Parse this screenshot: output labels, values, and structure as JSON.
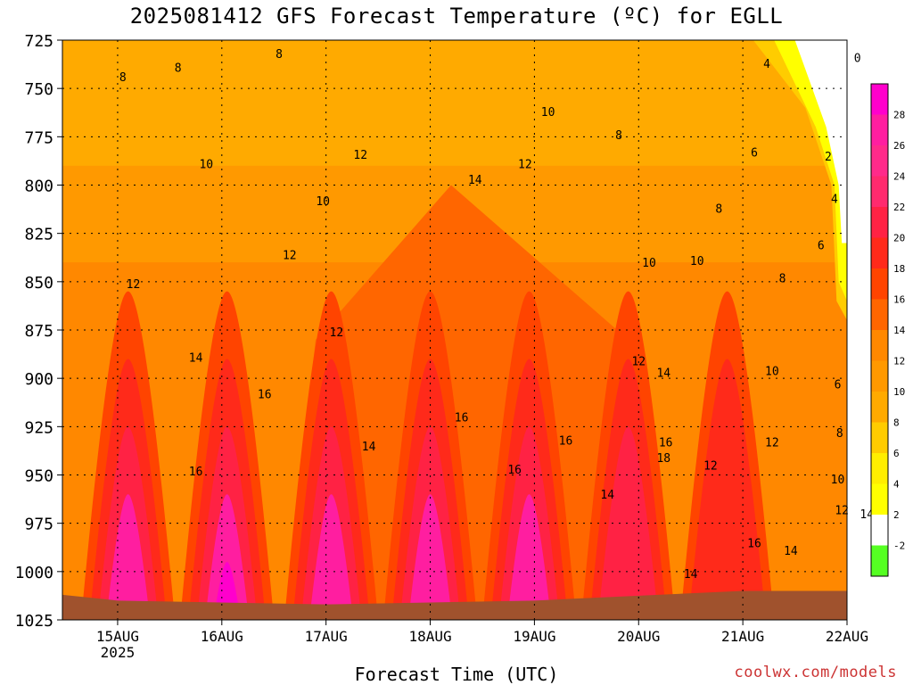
{
  "header": {
    "title": "2025081412 GFS Forecast Temperature (ºC) for EGLL"
  },
  "footer": {
    "xlabel": "Forecast Time (UTC)",
    "credit": "coolwx.com/models"
  },
  "chart_data": {
    "type": "heatmap",
    "title": "2025081412 GFS Forecast Temperature (ºC) for EGLL",
    "xlabel": "Forecast Time (UTC)",
    "ylabel": "",
    "x_ticks": [
      "15AUG",
      "16AUG",
      "17AUG",
      "18AUG",
      "19AUG",
      "20AUG",
      "21AUG",
      "22AUG"
    ],
    "x_year_label": "2025",
    "y_ticks": [
      725,
      750,
      775,
      800,
      825,
      850,
      875,
      900,
      925,
      950,
      975,
      1000,
      1025
    ],
    "ylim": [
      725,
      1025
    ],
    "grid": true,
    "colorbar": {
      "labels": [
        28,
        26,
        24,
        22,
        20,
        18,
        16,
        14,
        12,
        10,
        8,
        6,
        4,
        2,
        -2
      ],
      "colors": [
        "#ff00cc",
        "#ff1ea0",
        "#ff2a8a",
        "#ff2a6e",
        "#ff2244",
        "#ff2a1a",
        "#ff4400",
        "#ff6600",
        "#ff8800",
        "#ff9900",
        "#ffaa00",
        "#ffcc00",
        "#ffee00",
        "#ffff00",
        "#ffffff",
        "#55ff22"
      ]
    },
    "contour_labels": [
      {
        "v": "8",
        "t": 0.05,
        "p": 744
      },
      {
        "v": "8",
        "t": 0.58,
        "p": 739
      },
      {
        "v": "8",
        "t": 1.55,
        "p": 732
      },
      {
        "v": "10",
        "t": 0.85,
        "p": 789
      },
      {
        "v": "10",
        "t": 1.97,
        "p": 808
      },
      {
        "v": "12",
        "t": 2.33,
        "p": 784
      },
      {
        "v": "14",
        "t": 3.43,
        "p": 797
      },
      {
        "v": "12",
        "t": 3.91,
        "p": 789
      },
      {
        "v": "10",
        "t": 4.13,
        "p": 762
      },
      {
        "v": "8",
        "t": 4.81,
        "p": 774
      },
      {
        "v": "4",
        "t": 6.23,
        "p": 737
      },
      {
        "v": "6",
        "t": 6.11,
        "p": 783
      },
      {
        "v": "2",
        "t": 6.82,
        "p": 785
      },
      {
        "v": "0",
        "t": 7.1,
        "p": 734
      },
      {
        "v": "4",
        "t": 6.88,
        "p": 807
      },
      {
        "v": "8",
        "t": 5.77,
        "p": 812
      },
      {
        "v": "6",
        "t": 6.75,
        "p": 831
      },
      {
        "v": "8",
        "t": 6.38,
        "p": 848
      },
      {
        "v": "10",
        "t": 5.1,
        "p": 840
      },
      {
        "v": "10",
        "t": 5.56,
        "p": 839
      },
      {
        "v": "12",
        "t": 1.65,
        "p": 836
      },
      {
        "v": "12",
        "t": 0.15,
        "p": 851
      },
      {
        "v": "12",
        "t": 2.1,
        "p": 876
      },
      {
        "v": "14",
        "t": 0.75,
        "p": 889
      },
      {
        "v": "16",
        "t": 1.41,
        "p": 908
      },
      {
        "v": "16",
        "t": 0.75,
        "p": 948
      },
      {
        "v": "14",
        "t": 2.41,
        "p": 935
      },
      {
        "v": "16",
        "t": 3.3,
        "p": 920
      },
      {
        "v": "16",
        "t": 4.3,
        "p": 932
      },
      {
        "v": "16",
        "t": 3.81,
        "p": 947
      },
      {
        "v": "12",
        "t": 5.0,
        "p": 891
      },
      {
        "v": "14",
        "t": 5.24,
        "p": 897
      },
      {
        "v": "16",
        "t": 5.26,
        "p": 933
      },
      {
        "v": "18",
        "t": 5.24,
        "p": 941
      },
      {
        "v": "14",
        "t": 4.7,
        "p": 960
      },
      {
        "v": "12",
        "t": 5.69,
        "p": 945
      },
      {
        "v": "10",
        "t": 6.28,
        "p": 896
      },
      {
        "v": "12",
        "t": 6.28,
        "p": 933
      },
      {
        "v": "6",
        "t": 6.91,
        "p": 903
      },
      {
        "v": "8",
        "t": 6.93,
        "p": 928
      },
      {
        "v": "10",
        "t": 6.91,
        "p": 952
      },
      {
        "v": "12",
        "t": 6.95,
        "p": 968
      },
      {
        "v": "14",
        "t": 7.19,
        "p": 970
      },
      {
        "v": "16",
        "t": 6.11,
        "p": 985
      },
      {
        "v": "14",
        "t": 6.46,
        "p": 989
      },
      {
        "v": "14",
        "t": 5.5,
        "p": 1001
      }
    ]
  }
}
